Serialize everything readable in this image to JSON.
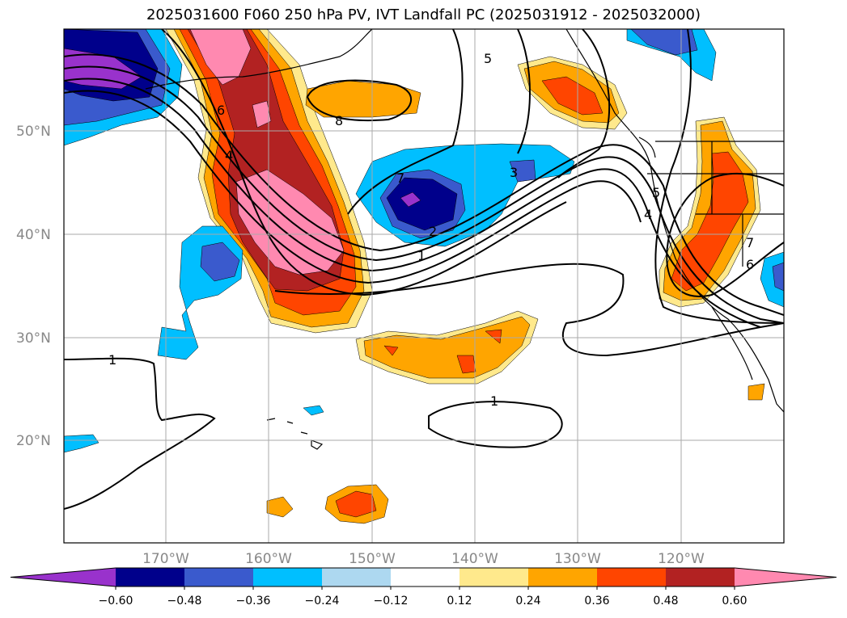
{
  "title": "2025031600 F060 250 hPa PV, IVT Landfall PC (2025031912 - 2025032000)",
  "lat_ticks": [
    "50°N",
    "40°N",
    "30°N",
    "20°N"
  ],
  "lon_ticks": [
    "170°W",
    "160°W",
    "150°W",
    "140°W",
    "130°W",
    "120°W"
  ],
  "colorbar": {
    "extend": "both",
    "ticks": [
      "−0.60",
      "−0.48",
      "−0.36",
      "−0.24",
      "−0.12",
      "0.12",
      "0.24",
      "0.36",
      "0.48",
      "0.60"
    ],
    "colors": [
      "#9932cc",
      "#00008b",
      "#3a5acd",
      "#00bfff",
      "#add8f0",
      "#ffffff",
      "#ffe98c",
      "#ffa500",
      "#ff4500",
      "#b22222",
      "#ff89b0"
    ]
  },
  "contour_labels": [
    "1",
    "1",
    "1",
    "2",
    "3",
    "4",
    "5",
    "5",
    "6",
    "6",
    "7",
    "7",
    "8",
    "4"
  ]
}
